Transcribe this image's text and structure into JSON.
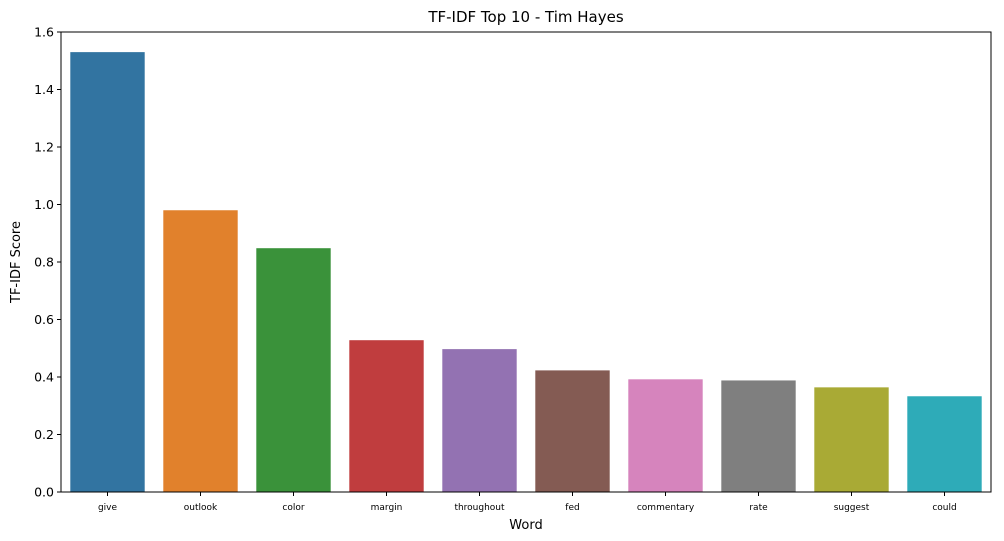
{
  "chart_data": {
    "type": "bar",
    "title": "TF-IDF Top 10 - Tim Hayes",
    "xlabel": "Word",
    "ylabel": "TF-IDF Score",
    "categories": [
      "give",
      "outlook",
      "color",
      "margin",
      "throughout",
      "fed",
      "commentary",
      "rate",
      "suggest",
      "could"
    ],
    "values": [
      1.53,
      0.98,
      0.848,
      0.528,
      0.497,
      0.423,
      0.392,
      0.388,
      0.364,
      0.333
    ],
    "colors": [
      "#3274a1",
      "#e1812c",
      "#3a923a",
      "#c03d3e",
      "#9372b2",
      "#845b53",
      "#d684bd",
      "#7f7f7f",
      "#a9aa35",
      "#2eabb8"
    ],
    "ylim": [
      0,
      1.6
    ],
    "yticks": [
      0.0,
      0.2,
      0.4,
      0.6,
      0.8,
      1.0,
      1.2,
      1.4,
      1.6
    ],
    "ytick_labels": [
      "0.0",
      "0.2",
      "0.4",
      "0.6",
      "0.8",
      "1.0",
      "1.2",
      "1.4",
      "1.6"
    ],
    "grid": false,
    "legend": "none"
  }
}
